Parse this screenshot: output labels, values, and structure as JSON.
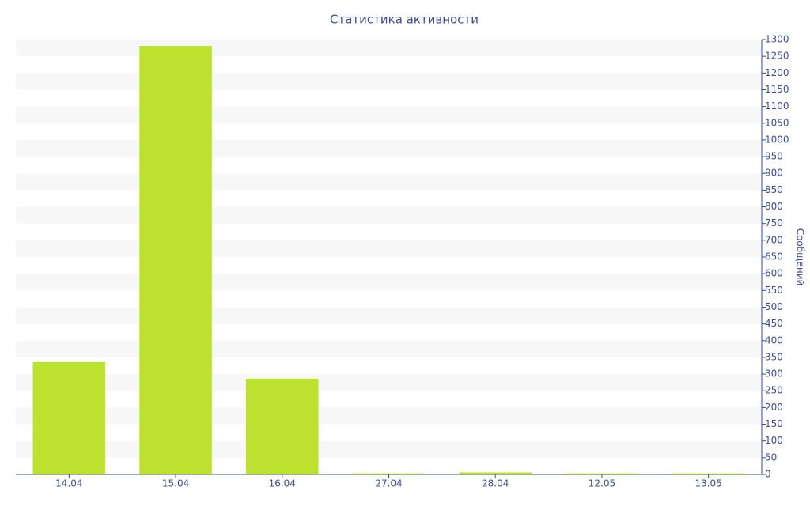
{
  "chart_data": {
    "type": "bar",
    "title": "Статистика активности",
    "y_axis_label": "Сообщений",
    "categories": [
      "14.04",
      "15.04",
      "16.04",
      "27.04",
      "28.04",
      "12.05",
      "13.05"
    ],
    "values": [
      336,
      1281,
      286,
      3,
      6,
      3,
      3
    ],
    "color": "#bde12f",
    "ylim": [
      0,
      1300
    ],
    "yticks": [
      0,
      50,
      100,
      150,
      200,
      250,
      300,
      350,
      400,
      450,
      500,
      550,
      600,
      650,
      700,
      750,
      800,
      850,
      900,
      950,
      1000,
      1050,
      1100,
      1150,
      1200,
      1250,
      1300
    ],
    "grid": true
  }
}
